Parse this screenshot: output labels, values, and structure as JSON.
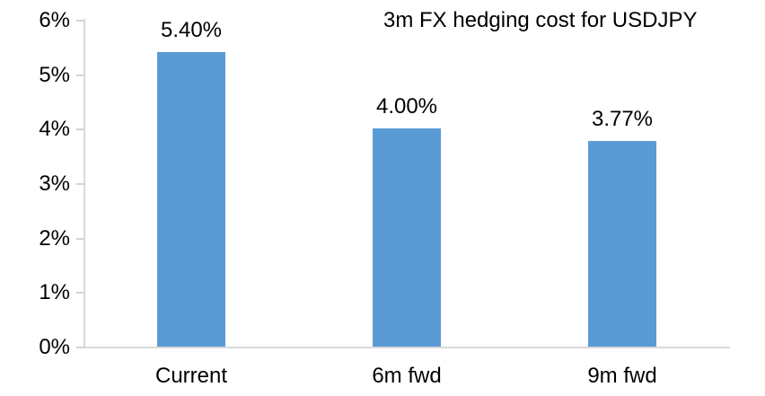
{
  "chart_data": {
    "type": "bar",
    "title": "3m FX hedging cost for USDJPY",
    "categories": [
      "Current",
      "6m fwd",
      "9m fwd"
    ],
    "values": [
      5.4,
      4.0,
      3.77
    ],
    "data_labels": [
      "5.40%",
      "4.00%",
      "3.77%"
    ],
    "y_ticks": [
      {
        "value": 0,
        "label": "0%"
      },
      {
        "value": 1,
        "label": "1%"
      },
      {
        "value": 2,
        "label": "2%"
      },
      {
        "value": 3,
        "label": "3%"
      },
      {
        "value": 4,
        "label": "4%"
      },
      {
        "value": 5,
        "label": "5%"
      },
      {
        "value": 6,
        "label": "6%"
      }
    ],
    "ylim": [
      0,
      6
    ],
    "xlabel": "",
    "ylabel": "",
    "grid": false,
    "legend": false,
    "colors": {
      "bar": "#5b9bd5",
      "axis": "#d9d9d9",
      "text": "#000000",
      "background": "#ffffff"
    }
  }
}
